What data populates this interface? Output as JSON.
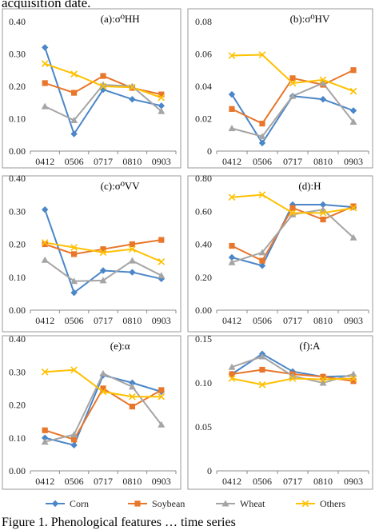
{
  "text": {
    "top_line": "acquisition date.",
    "bottom_line": "Figure 1. Phenological features … time series"
  },
  "colors": {
    "Corn": "#4a86c8",
    "Soybean": "#e8762b",
    "Wheat": "#a5a5a5",
    "Others": "#ffc000"
  },
  "legend": {
    "entries": [
      "Corn",
      "Soybean",
      "Wheat",
      "Others"
    ],
    "markers": [
      "diamond",
      "square",
      "triangle",
      "x"
    ],
    "placement": "bottom"
  },
  "chart_data": [
    {
      "type": "line",
      "title": "(a):σ⁰HH",
      "categories": [
        "0412",
        "0506",
        "0717",
        "0810",
        "0903"
      ],
      "ylim": [
        0,
        0.4
      ],
      "yticks": [
        "0.00",
        "0.10",
        "0.20",
        "0.30",
        "0.40"
      ],
      "series": [
        {
          "name": "Corn",
          "values": [
            0.32,
            0.053,
            0.19,
            0.16,
            0.14
          ]
        },
        {
          "name": "Soybean",
          "values": [
            0.21,
            0.18,
            0.232,
            0.195,
            0.175
          ]
        },
        {
          "name": "Wheat",
          "values": [
            0.138,
            0.095,
            0.205,
            0.2,
            0.123
          ]
        },
        {
          "name": "Others",
          "values": [
            0.27,
            0.238,
            0.2,
            0.197,
            0.165
          ]
        }
      ]
    },
    {
      "type": "line",
      "title": "(b):σ⁰HV",
      "categories": [
        "0412",
        "0506",
        "0717",
        "0810",
        "0903"
      ],
      "ylim": [
        0,
        0.08
      ],
      "yticks": [
        "0",
        "0.02",
        "0.04",
        "0.06",
        "0.08"
      ],
      "series": [
        {
          "name": "Corn",
          "values": [
            0.035,
            0.005,
            0.034,
            0.032,
            0.025
          ]
        },
        {
          "name": "Soybean",
          "values": [
            0.026,
            0.017,
            0.045,
            0.041,
            0.05
          ]
        },
        {
          "name": "Wheat",
          "values": [
            0.014,
            0.009,
            0.034,
            0.042,
            0.018
          ]
        },
        {
          "name": "Others",
          "values": [
            0.059,
            0.0595,
            0.042,
            0.044,
            0.037
          ]
        }
      ]
    },
    {
      "type": "line",
      "title": "(c):σ⁰VV",
      "categories": [
        "0412",
        "0506",
        "0717",
        "0810",
        "0903"
      ],
      "ylim": [
        0,
        0.4
      ],
      "yticks": [
        "0.00",
        "0.10",
        "0.20",
        "0.30",
        "0.40"
      ],
      "series": [
        {
          "name": "Corn",
          "values": [
            0.305,
            0.053,
            0.12,
            0.115,
            0.095
          ]
        },
        {
          "name": "Soybean",
          "values": [
            0.2,
            0.17,
            0.185,
            0.2,
            0.213
          ]
        },
        {
          "name": "Wheat",
          "values": [
            0.152,
            0.088,
            0.09,
            0.15,
            0.105
          ]
        },
        {
          "name": "Others",
          "values": [
            0.205,
            0.19,
            0.175,
            0.185,
            0.147
          ]
        }
      ]
    },
    {
      "type": "line",
      "title": "(d):H",
      "categories": [
        "0412",
        "0506",
        "0717",
        "0810",
        "0903"
      ],
      "ylim": [
        0,
        0.8
      ],
      "yticks": [
        "0.00",
        "0.20",
        "0.40",
        "0.60",
        "0.80"
      ],
      "series": [
        {
          "name": "Corn",
          "values": [
            0.32,
            0.27,
            0.64,
            0.64,
            0.625
          ]
        },
        {
          "name": "Soybean",
          "values": [
            0.39,
            0.3,
            0.62,
            0.55,
            0.63
          ]
        },
        {
          "name": "Wheat",
          "values": [
            0.29,
            0.35,
            0.58,
            0.61,
            0.44
          ]
        },
        {
          "name": "Others",
          "values": [
            0.685,
            0.7,
            0.59,
            0.59,
            0.62
          ]
        }
      ]
    },
    {
      "type": "line",
      "title": "(e):α",
      "categories": [
        "0412",
        "0506",
        "0717",
        "0810",
        "0903"
      ],
      "ylim": [
        0,
        0.4
      ],
      "yticks": [
        "0.00",
        "0.10",
        "0.20",
        "0.30",
        "0.40"
      ],
      "series": [
        {
          "name": "Corn",
          "values": [
            0.1,
            0.078,
            0.29,
            0.267,
            0.24
          ]
        },
        {
          "name": "Soybean",
          "values": [
            0.123,
            0.095,
            0.25,
            0.195,
            0.245
          ]
        },
        {
          "name": "Wheat",
          "values": [
            0.088,
            0.11,
            0.295,
            0.255,
            0.14
          ]
        },
        {
          "name": "Others",
          "values": [
            0.3,
            0.306,
            0.24,
            0.225,
            0.225
          ]
        }
      ]
    },
    {
      "type": "line",
      "title": "(f):A",
      "categories": [
        "0412",
        "0506",
        "0717",
        "0810",
        "0903"
      ],
      "ylim": [
        0,
        0.15
      ],
      "yticks": [
        "0",
        "0.05",
        "0.10",
        "0.15"
      ],
      "series": [
        {
          "name": "Corn",
          "values": [
            0.11,
            0.133,
            0.113,
            0.107,
            0.108
          ]
        },
        {
          "name": "Soybean",
          "values": [
            0.11,
            0.115,
            0.11,
            0.107,
            0.102
          ]
        },
        {
          "name": "Wheat",
          "values": [
            0.118,
            0.13,
            0.108,
            0.1,
            0.11
          ]
        },
        {
          "name": "Others",
          "values": [
            0.105,
            0.098,
            0.105,
            0.104,
            0.105
          ]
        }
      ]
    }
  ]
}
